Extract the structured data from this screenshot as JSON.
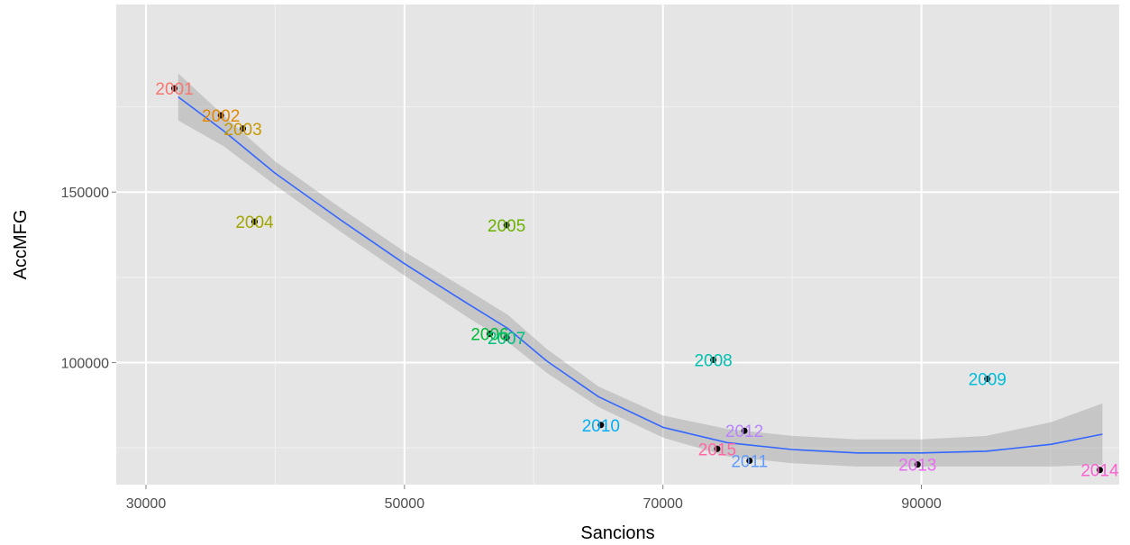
{
  "chart_data": {
    "type": "scatter",
    "xlabel": "Sancions",
    "ylabel": "AccMFG",
    "xlim": [
      27700,
      105300
    ],
    "ylim": [
      64200,
      205000
    ],
    "x_ticks": [
      30000,
      50000,
      70000,
      90000
    ],
    "y_ticks": [
      100000,
      150000
    ],
    "x_tick_labels": [
      "30000",
      "50000",
      "70000",
      "90000"
    ],
    "y_tick_labels": [
      "100000",
      "150000"
    ],
    "grid": true,
    "points": [
      {
        "label": "2001",
        "x": 32200,
        "y": 180400,
        "color": "#F8766D"
      },
      {
        "label": "2002",
        "x": 35800,
        "y": 172500,
        "color": "#E58700"
      },
      {
        "label": "2003",
        "x": 37500,
        "y": 168600,
        "color": "#C99800"
      },
      {
        "label": "2004",
        "x": 38400,
        "y": 141300,
        "color": "#A3A500"
      },
      {
        "label": "2005",
        "x": 57900,
        "y": 140300,
        "color": "#6BB100"
      },
      {
        "label": "2006",
        "x": 56600,
        "y": 108400,
        "color": "#00BA38"
      },
      {
        "label": "2007",
        "x": 57900,
        "y": 107300,
        "color": "#00BF7D"
      },
      {
        "label": "2008",
        "x": 73900,
        "y": 100800,
        "color": "#00C0AF"
      },
      {
        "label": "2009",
        "x": 95100,
        "y": 95200,
        "color": "#00BCD8"
      },
      {
        "label": "2010",
        "x": 65200,
        "y": 81700,
        "color": "#00B0F6"
      },
      {
        "label": "2011",
        "x": 76700,
        "y": 71200,
        "color": "#619CFF"
      },
      {
        "label": "2012",
        "x": 76300,
        "y": 80000,
        "color": "#B983FF"
      },
      {
        "label": "2013",
        "x": 89700,
        "y": 70100,
        "color": "#E76BF3"
      },
      {
        "label": "2014",
        "x": 103800,
        "y": 68500,
        "color": "#FD61D1"
      },
      {
        "label": "2015",
        "x": 74200,
        "y": 74700,
        "color": "#FF67A4"
      }
    ],
    "smooth": {
      "color": "#3366FF",
      "band_color": "#999999",
      "x": [
        32500,
        36000,
        40000,
        45000,
        50000,
        55000,
        58000,
        61000,
        65000,
        70000,
        75000,
        80000,
        85000,
        90000,
        95000,
        100000,
        104000
      ],
      "y": [
        177900,
        168000,
        155500,
        142000,
        129000,
        117000,
        110000,
        100500,
        90000,
        81000,
        76500,
        74500,
        73500,
        73500,
        74000,
        76000,
        79000
      ],
      "lower": [
        171000,
        163500,
        152000,
        138500,
        125500,
        113000,
        106000,
        97000,
        87000,
        78000,
        72500,
        70500,
        69500,
        69500,
        69500,
        69500,
        70000
      ],
      "upper": [
        184800,
        172500,
        159000,
        145500,
        132500,
        121000,
        114000,
        104000,
        93000,
        84500,
        80500,
        78500,
        77500,
        77500,
        78500,
        82500,
        88000
      ]
    }
  }
}
